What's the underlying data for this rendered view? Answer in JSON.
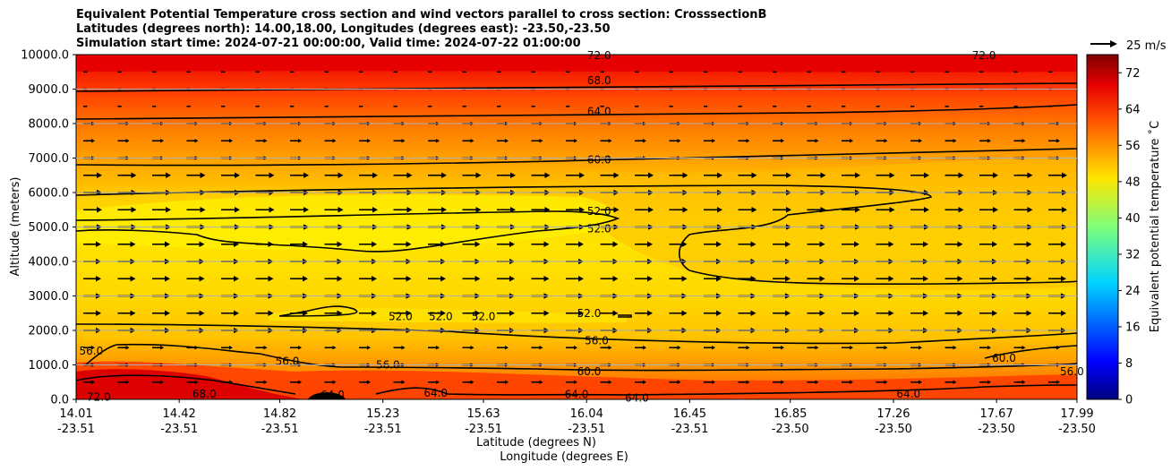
{
  "chart_data": {
    "type": "contour",
    "title_lines": [
      "Equivalent Potential Temperature cross section and wind vectors parallel to cross section: CrosssectionB",
      "Latitudes (degrees north): 14.00,18.00, Longitudes (degrees east): -23.50,-23.50",
      "Simulation start time: 2024-07-21 00:00:00, Valid time: 2024-07-22 01:00:00"
    ],
    "xlabel": "Latitude (degrees N)",
    "xlabel2": "Longitude (degrees E)",
    "ylabel": "Altitude (meters)",
    "x_ticks_lat": [
      "14.01",
      "14.42",
      "14.82",
      "15.23",
      "15.63",
      "16.04",
      "16.45",
      "16.85",
      "17.26",
      "17.67",
      "17.99"
    ],
    "x_ticks_lon": [
      "-23.51",
      "-23.51",
      "-23.51",
      "-23.51",
      "-23.51",
      "-23.51",
      "-23.51",
      "-23.50",
      "-23.50",
      "-23.50",
      "-23.50"
    ],
    "y_ticks": [
      "0.0",
      "1000.0",
      "2000.0",
      "3000.0",
      "4000.0",
      "5000.0",
      "6000.0",
      "7000.0",
      "8000.0",
      "9000.0",
      "10000.0"
    ],
    "ylim": [
      0,
      10000
    ],
    "grid": "horizontal",
    "colorbar": {
      "label": "Equivalent potential temperature $^\\circ$C",
      "label_display": "Equivalent potential temperature ˚C",
      "ticks": [
        "0",
        "8",
        "16",
        "24",
        "32",
        "40",
        "48",
        "56",
        "64",
        "72"
      ],
      "range": [
        0,
        76
      ],
      "colormap": "jet"
    },
    "quiver_key": "25 m/s",
    "contour_labels": [
      {
        "text": "72.0",
        "x": 14.1,
        "y": 60
      },
      {
        "text": "68.0",
        "x": 14.52,
        "y": 160
      },
      {
        "text": "64.0",
        "x": 15.03,
        "y": 130
      },
      {
        "text": "56.0",
        "x": 14.07,
        "y": 1400
      },
      {
        "text": "56.0",
        "x": 14.85,
        "y": 1100
      },
      {
        "text": "56.0",
        "x": 15.25,
        "y": 1000
      },
      {
        "text": "52.0",
        "x": 15.3,
        "y": 2400
      },
      {
        "text": "52.0",
        "x": 15.46,
        "y": 2400
      },
      {
        "text": "52.0",
        "x": 15.63,
        "y": 2400
      },
      {
        "text": "52.0",
        "x": 16.05,
        "y": 2500
      },
      {
        "text": "56.0",
        "x": 16.08,
        "y": 1700
      },
      {
        "text": "60.0",
        "x": 16.05,
        "y": 800
      },
      {
        "text": "64.0",
        "x": 15.44,
        "y": 180
      },
      {
        "text": "64.0",
        "x": 16.0,
        "y": 140
      },
      {
        "text": "64.0",
        "x": 16.24,
        "y": 40
      },
      {
        "text": "64.0",
        "x": 17.32,
        "y": 150
      },
      {
        "text": "60.0",
        "x": 17.7,
        "y": 1200
      },
      {
        "text": "56.0",
        "x": 17.97,
        "y": 800
      },
      {
        "text": "52.0",
        "x": 16.09,
        "y": 5450
      },
      {
        "text": "52.0",
        "x": 16.09,
        "y": 4950
      },
      {
        "text": "60.0",
        "x": 16.09,
        "y": 6950
      },
      {
        "text": "64.0",
        "x": 16.09,
        "y": 8350
      },
      {
        "text": "68.0",
        "x": 16.09,
        "y": 9250
      },
      {
        "text": "72.0",
        "x": 16.09,
        "y": 9980
      },
      {
        "text": "72.0",
        "x": 17.62,
        "y": 9980
      }
    ],
    "contour_levels": [
      52,
      56,
      60,
      64,
      68,
      72
    ]
  }
}
